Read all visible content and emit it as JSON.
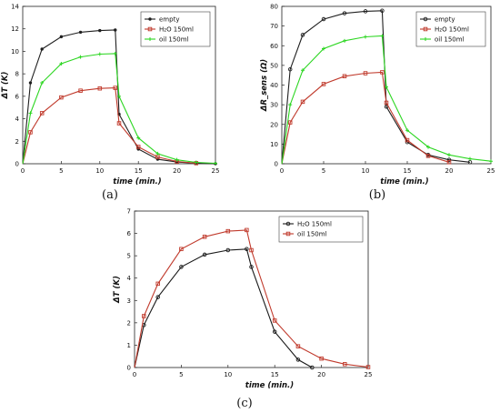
{
  "figure": {
    "captions": [
      "(a)",
      "(b)",
      "(c)"
    ]
  },
  "colors": {
    "empty": "#1f1f1f",
    "h2o": "#c0392b",
    "oil": "#2bd620",
    "h2o_c": "#1a1a1a",
    "oil_c": "#c0392b"
  },
  "chart_data": [
    {
      "type": "line",
      "caption": "(a)",
      "xlabel": "time (min.)",
      "ylabel": "ΔT (K)",
      "xlim": [
        0,
        25
      ],
      "ylim": [
        0,
        14
      ],
      "xticks": [
        0,
        5,
        10,
        15,
        20,
        25
      ],
      "yticks": [
        0,
        2,
        4,
        6,
        8,
        10,
        12,
        14
      ],
      "grid": false,
      "legend_position": "top-right",
      "series": [
        {
          "name": "empty",
          "color": "#1f1f1f",
          "marker": "dot",
          "x": [
            0,
            1,
            2.5,
            5,
            7.5,
            10,
            12,
            12.5,
            15,
            17.5,
            20,
            22.5,
            25
          ],
          "y": [
            0,
            7.2,
            10.2,
            11.3,
            11.7,
            11.85,
            11.9,
            4.4,
            1.3,
            0.4,
            0.15,
            0.05,
            0.0
          ]
        },
        {
          "name": "H₂O 150ml",
          "color": "#c0392b",
          "marker": "square",
          "x": [
            0,
            1,
            2.5,
            5,
            7.5,
            10,
            12,
            12.5,
            15,
            17.5,
            20,
            22.5
          ],
          "y": [
            0,
            2.8,
            4.5,
            5.9,
            6.5,
            6.7,
            6.75,
            3.6,
            1.5,
            0.6,
            0.2,
            0.05
          ]
        },
        {
          "name": "oil 150ml",
          "color": "#2bd620",
          "marker": "cross",
          "x": [
            0,
            1,
            2.5,
            5,
            7.5,
            10,
            12,
            12.5,
            15,
            17.5,
            20,
            22.5,
            25
          ],
          "y": [
            0,
            4.5,
            7.2,
            8.9,
            9.5,
            9.75,
            9.8,
            6.0,
            2.3,
            0.9,
            0.35,
            0.12,
            0.04
          ]
        }
      ]
    },
    {
      "type": "line",
      "caption": "(b)",
      "xlabel": "time (min.)",
      "ylabel": "ΔR_sens (Ω)",
      "xlim": [
        0,
        25
      ],
      "ylim": [
        0,
        80
      ],
      "xticks": [
        0,
        5,
        10,
        15,
        20,
        25
      ],
      "yticks": [
        0,
        10,
        20,
        30,
        40,
        50,
        60,
        70,
        80
      ],
      "grid": false,
      "legend_position": "top-right",
      "series": [
        {
          "name": "empty",
          "color": "#1f1f1f",
          "marker": "circle",
          "x": [
            0,
            1,
            2.5,
            5,
            7.5,
            10,
            12,
            12.5,
            15,
            17.5,
            20,
            22.5
          ],
          "y": [
            0,
            48,
            65.5,
            73.5,
            76.5,
            77.5,
            77.8,
            29,
            11,
            4.5,
            2.0,
            0.8
          ]
        },
        {
          "name": "H₂O 150ml",
          "color": "#c0392b",
          "marker": "square",
          "x": [
            0,
            1,
            2.5,
            5,
            7.5,
            10,
            12,
            12.5,
            15,
            17.5,
            20
          ],
          "y": [
            0,
            21,
            31.5,
            40.5,
            44.5,
            46,
            46.5,
            31,
            12,
            4,
            0.8
          ]
        },
        {
          "name": "oil 150ml",
          "color": "#2bd620",
          "marker": "cross",
          "x": [
            0,
            1,
            2.5,
            5,
            7.5,
            10,
            12,
            12.5,
            15,
            17.5,
            20,
            22.5,
            25
          ],
          "y": [
            0,
            30,
            47.5,
            58.5,
            62.5,
            64.5,
            65,
            39,
            17,
            8.5,
            4.5,
            2.5,
            1.3
          ]
        }
      ]
    },
    {
      "type": "line",
      "caption": "(c)",
      "xlabel": "time (min.)",
      "ylabel": "ΔT (K)",
      "xlim": [
        0,
        25
      ],
      "ylim": [
        0,
        7
      ],
      "xticks": [
        0,
        5,
        10,
        15,
        20,
        25
      ],
      "yticks": [
        0,
        1,
        2,
        3,
        4,
        5,
        6,
        7
      ],
      "grid": false,
      "legend_position": "top-right",
      "series": [
        {
          "name": "H₂O 150ml",
          "color": "#1a1a1a",
          "marker": "circle",
          "x": [
            0,
            1,
            2.5,
            5,
            7.5,
            10,
            12,
            12.5,
            15,
            17.5,
            19
          ],
          "y": [
            0,
            1.9,
            3.15,
            4.5,
            5.05,
            5.25,
            5.3,
            4.5,
            1.6,
            0.35,
            0.0
          ]
        },
        {
          "name": "oil 150ml",
          "color": "#c0392b",
          "marker": "square",
          "x": [
            0,
            1,
            2.5,
            5,
            7.5,
            10,
            12,
            12.5,
            15,
            17.5,
            20,
            22.5,
            25
          ],
          "y": [
            0,
            2.3,
            3.75,
            5.3,
            5.85,
            6.1,
            6.15,
            5.25,
            2.1,
            0.95,
            0.4,
            0.15,
            0.02
          ]
        }
      ]
    }
  ]
}
